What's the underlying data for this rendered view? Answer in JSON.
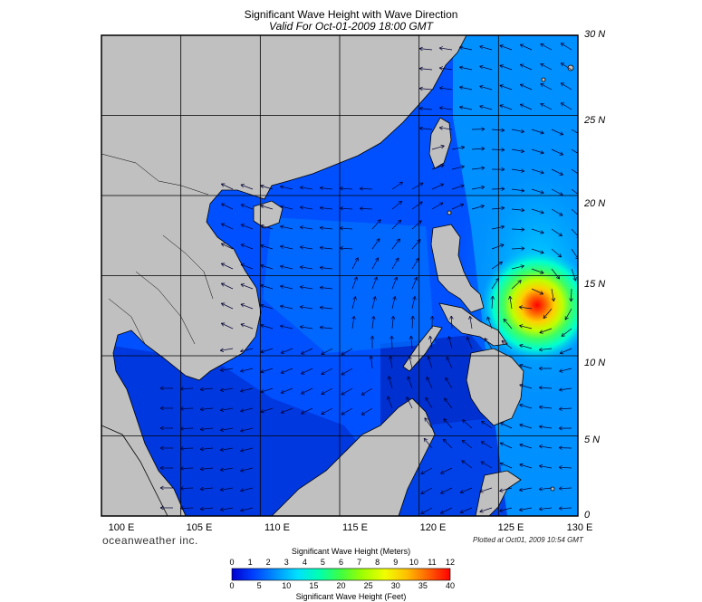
{
  "title": "Significant Wave Height with Wave Direction",
  "subtitle": "Valid For Oct-01-2009 18:00 GMT",
  "brand": "oceanweather inc.",
  "plotted": "Plotted at Oct01, 2009 10:54 GMT",
  "map": {
    "lon_labels": [
      "100 E",
      "105 E",
      "110 E",
      "115 E",
      "120 E",
      "125 E",
      "130 E"
    ],
    "lat_labels": [
      "30 N",
      "25 N",
      "20 N",
      "15 N",
      "10 N",
      "5 N",
      "0"
    ],
    "lon_range": [
      100,
      130
    ],
    "lat_range": [
      0,
      30
    ],
    "grid_step_deg": 5,
    "storm_center": {
      "lon": 127,
      "lat": 13.5,
      "max_height_m": 12
    },
    "colors": {
      "land": "#c0c0c0",
      "coast": "#000000",
      "grid": "#000000",
      "arrow": "#000033"
    }
  },
  "colorbar": {
    "title_meters": "Significant Wave Height (Meters)",
    "title_feet": "Significant Wave Height (Feet)",
    "meter_ticks": [
      "0",
      "1",
      "2",
      "3",
      "4",
      "5",
      "6",
      "7",
      "8",
      "9",
      "10",
      "11",
      "12"
    ],
    "feet_ticks": [
      "0",
      "5",
      "10",
      "15",
      "20",
      "25",
      "30",
      "35",
      "40"
    ],
    "stops": [
      "#0000d0",
      "#0040ff",
      "#0090ff",
      "#00e0ff",
      "#00ffb0",
      "#40ff40",
      "#a0ff00",
      "#f0ff00",
      "#ffc000",
      "#ff8000",
      "#ff3000",
      "#ff0000"
    ]
  }
}
